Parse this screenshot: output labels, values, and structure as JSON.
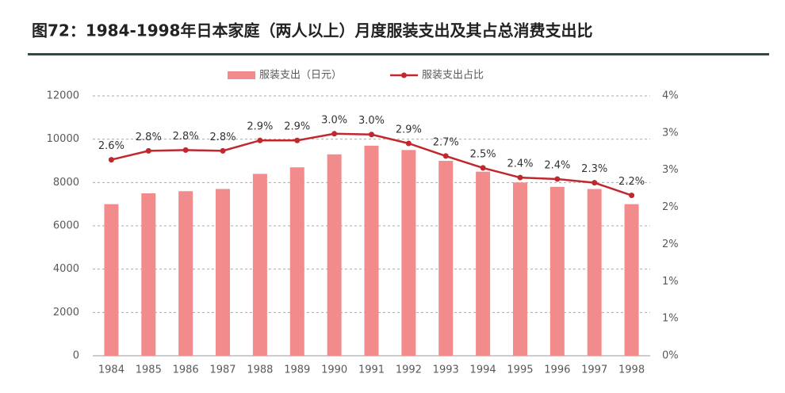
{
  "chart_data": {
    "type": "bar-line",
    "title": "图72：1984-1998年日本家庭（两人以上）月度服装支出及其占总消费支出比",
    "categories": [
      "1984",
      "1985",
      "1986",
      "1987",
      "1988",
      "1989",
      "1990",
      "1991",
      "1992",
      "1993",
      "1994",
      "1995",
      "1996",
      "1997",
      "1998"
    ],
    "series": [
      {
        "name": "服装支出（日元）",
        "type": "bar",
        "color": "#f28b8b",
        "values": [
          7000,
          7500,
          7600,
          7700,
          8400,
          8700,
          9300,
          9700,
          9500,
          9000,
          8500,
          8000,
          7800,
          7700,
          7000
        ]
      },
      {
        "name": "服装支出占比",
        "type": "line",
        "axis": "y2",
        "color": "#c0282d",
        "values": [
          2.64,
          2.76,
          2.77,
          2.76,
          2.9,
          2.9,
          2.99,
          2.98,
          2.86,
          2.69,
          2.53,
          2.4,
          2.38,
          2.33,
          2.16
        ],
        "value_labels": [
          "2.6%",
          "2.8%",
          "2.8%",
          "2.8%",
          "2.9%",
          "2.9%",
          "3.0%",
          "3.0%",
          "2.9%",
          "2.7%",
          "2.5%",
          "2.4%",
          "2.4%",
          "2.3%",
          "2.2%"
        ]
      }
    ],
    "ylim": [
      0,
      12000
    ],
    "yticks": [
      0,
      2000,
      4000,
      6000,
      8000,
      10000,
      12000
    ],
    "y2lim": [
      0,
      3.5
    ],
    "y2ticks": [
      {
        "value": 0,
        "label": "0%"
      },
      {
        "value": 0.5,
        "label": "1%"
      },
      {
        "value": 1,
        "label": "1%"
      },
      {
        "value": 1.5,
        "label": "2%"
      },
      {
        "value": 2,
        "label": "2%"
      },
      {
        "value": 2.5,
        "label": "3%"
      },
      {
        "value": 3,
        "label": "3%"
      },
      {
        "value": 3.5,
        "label": "4%"
      }
    ],
    "grid": true
  }
}
